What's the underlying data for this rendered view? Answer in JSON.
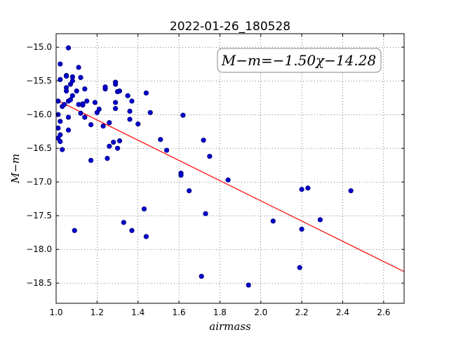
{
  "chart_data": {
    "type": "scatter",
    "title": "2022-01-26_180528",
    "xlabel": "airmass",
    "ylabel": "M−m",
    "xlim": [
      1.0,
      2.7
    ],
    "ylim": [
      -18.8,
      -14.8
    ],
    "xticks": [
      "1.0",
      "1.2",
      "1.4",
      "1.6",
      "1.8",
      "2.0",
      "2.2",
      "2.4",
      "2.6"
    ],
    "yticks": [
      "-15.0",
      "-15.5",
      "-16.0",
      "-16.5",
      "-17.0",
      "-17.5",
      "-18.0",
      "-18.5"
    ],
    "grid": true,
    "annotation": "M−m=−1.50χ−14.28",
    "fit": {
      "slope": -1.5,
      "intercept": -14.28,
      "color": "#ff0000"
    },
    "point_color": "#0000cc",
    "points": [
      [
        1.01,
        -15.8
      ],
      [
        1.01,
        -16.0
      ],
      [
        1.01,
        -16.2
      ],
      [
        1.01,
        -16.35
      ],
      [
        1.02,
        -16.1
      ],
      [
        1.02,
        -16.3
      ],
      [
        1.02,
        -16.4
      ],
      [
        1.02,
        -15.48
      ],
      [
        1.02,
        -15.25
      ],
      [
        1.03,
        -15.88
      ],
      [
        1.03,
        -16.52
      ],
      [
        1.04,
        -15.85
      ],
      [
        1.05,
        -15.6
      ],
      [
        1.05,
        -15.42
      ],
      [
        1.05,
        -15.43
      ],
      [
        1.05,
        -15.65
      ],
      [
        1.06,
        -15.01
      ],
      [
        1.06,
        -15.8
      ],
      [
        1.06,
        -16.04
      ],
      [
        1.06,
        -16.23
      ],
      [
        1.07,
        -15.55
      ],
      [
        1.07,
        -15.78
      ],
      [
        1.08,
        -15.72
      ],
      [
        1.08,
        -15.44
      ],
      [
        1.08,
        -15.5
      ],
      [
        1.09,
        -17.72
      ],
      [
        1.1,
        -15.65
      ],
      [
        1.11,
        -15.85
      ],
      [
        1.11,
        -15.3
      ],
      [
        1.12,
        -15.45
      ],
      [
        1.12,
        -15.98
      ],
      [
        1.13,
        -15.86
      ],
      [
        1.13,
        -15.84
      ],
      [
        1.14,
        -16.04
      ],
      [
        1.14,
        -15.62
      ],
      [
        1.15,
        -15.8
      ],
      [
        1.17,
        -16.15
      ],
      [
        1.17,
        -16.68
      ],
      [
        1.19,
        -15.82
      ],
      [
        1.2,
        -15.97
      ],
      [
        1.21,
        -15.92
      ],
      [
        1.23,
        -16.17
      ],
      [
        1.24,
        -15.62
      ],
      [
        1.24,
        -15.59
      ],
      [
        1.25,
        -16.65
      ],
      [
        1.26,
        -16.47
      ],
      [
        1.26,
        -16.12
      ],
      [
        1.28,
        -16.41
      ],
      [
        1.29,
        -15.82
      ],
      [
        1.29,
        -15.91
      ],
      [
        1.29,
        -15.55
      ],
      [
        1.29,
        -15.52
      ],
      [
        1.3,
        -15.66
      ],
      [
        1.3,
        -16.5
      ],
      [
        1.31,
        -16.39
      ],
      [
        1.31,
        -15.65
      ],
      [
        1.33,
        -17.6
      ],
      [
        1.35,
        -15.72
      ],
      [
        1.36,
        -15.95
      ],
      [
        1.36,
        -16.07
      ],
      [
        1.37,
        -17.72
      ],
      [
        1.37,
        -15.8
      ],
      [
        1.4,
        -16.14
      ],
      [
        1.43,
        -17.4
      ],
      [
        1.44,
        -15.68
      ],
      [
        1.44,
        -17.81
      ],
      [
        1.46,
        -15.97
      ],
      [
        1.51,
        -16.37
      ],
      [
        1.54,
        -16.53
      ],
      [
        1.61,
        -16.87
      ],
      [
        1.61,
        -16.9
      ],
      [
        1.62,
        -16.01
      ],
      [
        1.65,
        -17.13
      ],
      [
        1.71,
        -18.4
      ],
      [
        1.72,
        -16.38
      ],
      [
        1.73,
        -17.47
      ],
      [
        1.75,
        -16.62
      ],
      [
        1.84,
        -16.97
      ],
      [
        1.94,
        -18.53
      ],
      [
        2.06,
        -17.58
      ],
      [
        2.19,
        -18.27
      ],
      [
        2.2,
        -17.7
      ],
      [
        2.2,
        -17.11
      ],
      [
        2.23,
        -17.09
      ],
      [
        2.29,
        -17.56
      ],
      [
        2.44,
        -17.13
      ]
    ]
  }
}
